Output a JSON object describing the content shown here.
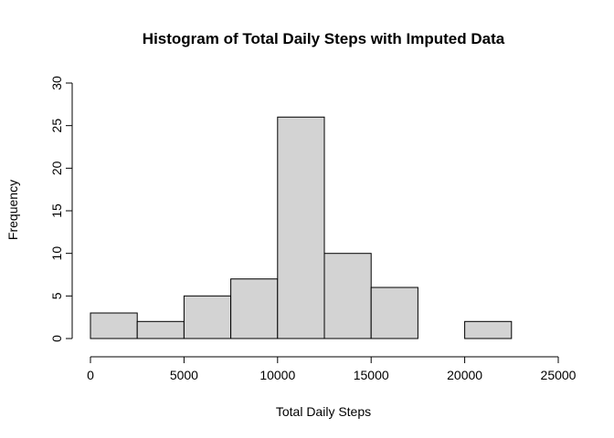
{
  "chart_data": {
    "type": "bar",
    "title": "Histogram of Total Daily Steps with Imputed Data",
    "xlabel": "Total Daily Steps",
    "ylabel": "Frequency",
    "bin_edges": [
      0,
      2500,
      5000,
      7500,
      10000,
      12500,
      15000,
      17500,
      20000,
      22500
    ],
    "values": [
      3,
      2,
      5,
      7,
      26,
      10,
      6,
      0,
      2
    ],
    "xlim": [
      0,
      25000
    ],
    "ylim": [
      0,
      30
    ],
    "x_ticks": [
      0,
      5000,
      10000,
      15000,
      20000,
      25000
    ],
    "y_ticks": [
      0,
      5,
      10,
      15,
      20,
      25,
      30
    ],
    "bar_color": "#D3D3D3",
    "grid": false
  }
}
